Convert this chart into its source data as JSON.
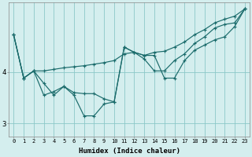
{
  "xlabel": "Humidex (Indice chaleur)",
  "bg_color": "#d4eeee",
  "grid_color": "#8cc8c8",
  "line_color": "#1a6b6b",
  "ylim": [
    2.75,
    5.35
  ],
  "yticks": [
    3,
    4
  ],
  "xlim": [
    -0.5,
    23.5
  ],
  "series": [
    [
      4.72,
      3.88,
      4.02,
      4.02,
      4.05,
      4.08,
      4.1,
      4.12,
      4.15,
      4.18,
      4.22,
      4.35,
      4.38,
      4.32,
      4.38,
      4.4,
      4.48,
      4.58,
      4.72,
      4.82,
      4.95,
      5.02,
      5.08,
      5.22
    ],
    [
      4.72,
      3.88,
      4.02,
      3.55,
      3.62,
      3.72,
      3.6,
      3.58,
      3.58,
      3.48,
      3.42,
      4.48,
      4.38,
      4.25,
      4.02,
      4.02,
      4.22,
      4.35,
      4.55,
      4.68,
      4.85,
      4.92,
      4.95,
      5.22
    ],
    [
      4.72,
      3.88,
      4.02,
      3.78,
      3.55,
      3.72,
      3.55,
      3.15,
      3.15,
      3.38,
      3.42,
      4.48,
      4.38,
      4.32,
      4.32,
      3.88,
      3.88,
      4.22,
      4.42,
      4.52,
      4.62,
      4.68,
      4.88,
      5.22
    ]
  ]
}
